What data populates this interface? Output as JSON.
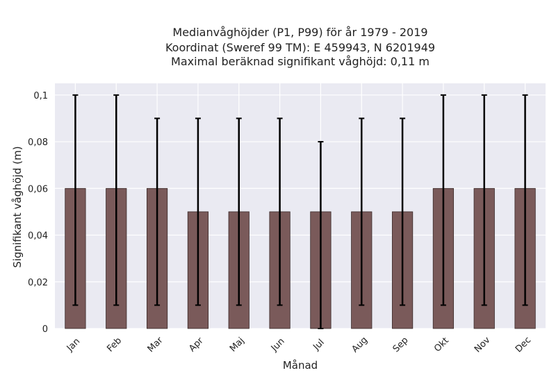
{
  "chart_data": {
    "type": "bar",
    "title_lines": [
      "Medianvåghöjder (P1, P99) för år 1979 - 2019",
      "Koordinat (Sweref 99 TM): E 459943, N 6201949",
      "Maximal beräknad signifikant våghöjd: 0,11 m"
    ],
    "xlabel": "Månad",
    "ylabel": "Signifikant våghöjd (m)",
    "categories": [
      "Jan",
      "Feb",
      "Mar",
      "Apr",
      "Maj",
      "Jun",
      "Jul",
      "Aug",
      "Sep",
      "Okt",
      "Nov",
      "Dec"
    ],
    "series": [
      {
        "values": [
          0.06,
          0.06,
          0.06,
          0.05,
          0.05,
          0.05,
          0.05,
          0.05,
          0.05,
          0.06,
          0.06,
          0.06
        ],
        "error_low": [
          0.01,
          0.01,
          0.01,
          0.01,
          0.01,
          0.01,
          0.0,
          0.01,
          0.01,
          0.01,
          0.01,
          0.01
        ],
        "error_high": [
          0.1,
          0.1,
          0.09,
          0.09,
          0.09,
          0.09,
          0.08,
          0.09,
          0.09,
          0.1,
          0.1,
          0.1
        ]
      }
    ],
    "ylim": [
      0,
      0.105
    ],
    "yticks": [
      0,
      0.02,
      0.04,
      0.06,
      0.08,
      0.1
    ],
    "ytick_labels": [
      "0",
      "0,02",
      "0,04",
      "0,06",
      "0,08",
      "0,1"
    ],
    "grid": true,
    "colors": {
      "bar_fill": "#7a5a5a",
      "bar_edge": "#3a2a2a",
      "error_bar": "#000000",
      "plot_background": "#eaeaf2",
      "grid": "#ffffff"
    }
  }
}
